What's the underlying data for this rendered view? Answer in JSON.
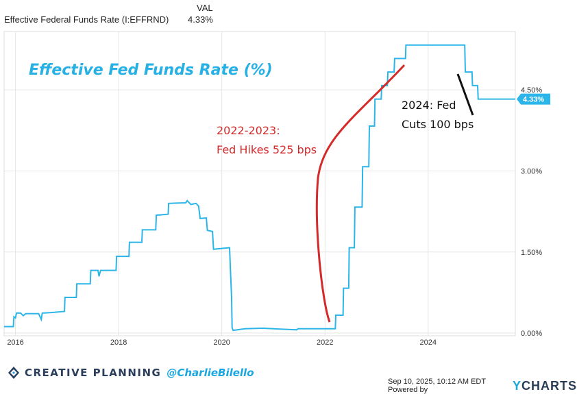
{
  "legend": {
    "column_header": "VAL",
    "series_name": "Effective Federal Funds Rate (I:EFFRND)",
    "series_value": "4.33%"
  },
  "colors": {
    "line": "#2bb5e8",
    "grid": "#e6e6e6",
    "border": "#dddddd",
    "hike_arrow": "#d42a2a",
    "cut_arrow": "#111111",
    "title": "#27b0e3",
    "badge_bg": "#2bb5e8"
  },
  "chart_data": {
    "type": "line",
    "title": "Effective Fed Funds Rate (%)",
    "xlabel": "",
    "ylabel": "",
    "xlim": [
      2015.78,
      2025.69
    ],
    "ylim": [
      -0.05,
      5.58
    ],
    "x_ticks": [
      {
        "value": 2016,
        "label": "2016"
      },
      {
        "value": 2018,
        "label": "2018"
      },
      {
        "value": 2020,
        "label": "2020"
      },
      {
        "value": 2022,
        "label": "2022"
      },
      {
        "value": 2024,
        "label": "2024"
      }
    ],
    "y_ticks": [
      {
        "value": 0.0,
        "label": "0.00%"
      },
      {
        "value": 1.5,
        "label": "1.50%"
      },
      {
        "value": 3.0,
        "label": "3.00%"
      },
      {
        "value": 4.5,
        "label": "4.50%"
      }
    ],
    "last_value_badge": {
      "value": 4.33,
      "label": "4.33%"
    },
    "series": [
      {
        "name": "Effective Federal Funds Rate (I:EFFRND)",
        "points": [
          [
            2015.78,
            0.12
          ],
          [
            2015.96,
            0.12
          ],
          [
            2015.97,
            0.3
          ],
          [
            2016.0,
            0.28
          ],
          [
            2016.02,
            0.37
          ],
          [
            2016.1,
            0.37
          ],
          [
            2016.15,
            0.32
          ],
          [
            2016.2,
            0.36
          ],
          [
            2016.45,
            0.36
          ],
          [
            2016.5,
            0.25
          ],
          [
            2016.52,
            0.37
          ],
          [
            2016.7,
            0.38
          ],
          [
            2016.95,
            0.4
          ],
          [
            2016.96,
            0.66
          ],
          [
            2017.18,
            0.66
          ],
          [
            2017.19,
            0.91
          ],
          [
            2017.45,
            0.91
          ],
          [
            2017.46,
            1.16
          ],
          [
            2017.6,
            1.16
          ],
          [
            2017.62,
            1.05
          ],
          [
            2017.65,
            1.16
          ],
          [
            2017.95,
            1.16
          ],
          [
            2017.96,
            1.42
          ],
          [
            2018.2,
            1.42
          ],
          [
            2018.21,
            1.68
          ],
          [
            2018.45,
            1.68
          ],
          [
            2018.46,
            1.91
          ],
          [
            2018.72,
            1.91
          ],
          [
            2018.73,
            2.18
          ],
          [
            2018.96,
            2.2
          ],
          [
            2018.97,
            2.4
          ],
          [
            2019.3,
            2.41
          ],
          [
            2019.33,
            2.45
          ],
          [
            2019.4,
            2.38
          ],
          [
            2019.5,
            2.4
          ],
          [
            2019.55,
            2.35
          ],
          [
            2019.58,
            2.12
          ],
          [
            2019.7,
            2.13
          ],
          [
            2019.72,
            1.9
          ],
          [
            2019.82,
            1.88
          ],
          [
            2019.84,
            1.55
          ],
          [
            2020.15,
            1.58
          ],
          [
            2020.17,
            1.1
          ],
          [
            2020.19,
            0.65
          ],
          [
            2020.2,
            0.1
          ],
          [
            2020.22,
            0.05
          ],
          [
            2020.45,
            0.08
          ],
          [
            2020.8,
            0.09
          ],
          [
            2021.2,
            0.07
          ],
          [
            2021.45,
            0.06
          ],
          [
            2021.48,
            0.08
          ],
          [
            2021.8,
            0.08
          ],
          [
            2022.2,
            0.08
          ],
          [
            2022.21,
            0.33
          ],
          [
            2022.35,
            0.33
          ],
          [
            2022.36,
            0.83
          ],
          [
            2022.46,
            0.83
          ],
          [
            2022.47,
            1.58
          ],
          [
            2022.57,
            1.58
          ],
          [
            2022.58,
            2.33
          ],
          [
            2022.72,
            2.33
          ],
          [
            2022.73,
            3.08
          ],
          [
            2022.85,
            3.08
          ],
          [
            2022.86,
            3.83
          ],
          [
            2022.96,
            3.83
          ],
          [
            2022.97,
            4.33
          ],
          [
            2023.09,
            4.33
          ],
          [
            2023.1,
            4.58
          ],
          [
            2023.21,
            4.58
          ],
          [
            2023.22,
            4.83
          ],
          [
            2023.34,
            4.83
          ],
          [
            2023.35,
            5.08
          ],
          [
            2023.56,
            5.08
          ],
          [
            2023.57,
            5.33
          ],
          [
            2024.71,
            5.33
          ],
          [
            2024.72,
            4.83
          ],
          [
            2024.85,
            4.83
          ],
          [
            2024.86,
            4.58
          ],
          [
            2024.96,
            4.58
          ],
          [
            2024.97,
            4.33
          ],
          [
            2025.69,
            4.33
          ]
        ]
      }
    ],
    "annotations": [
      {
        "id": "hike",
        "lines": [
          "2022-2023:",
          "Fed Hikes 525 bps"
        ]
      },
      {
        "id": "cut",
        "lines": [
          "2024: Fed",
          "Cuts 100 bps"
        ]
      }
    ]
  },
  "footer": {
    "brand": "CREATIVE PLANNING",
    "handle": "@CharlieBilello",
    "timestamp": "Sep 10, 2025, 10:12 AM EDT Powered by",
    "ycharts_y": "Y",
    "ycharts_rest": "CHARTS"
  }
}
